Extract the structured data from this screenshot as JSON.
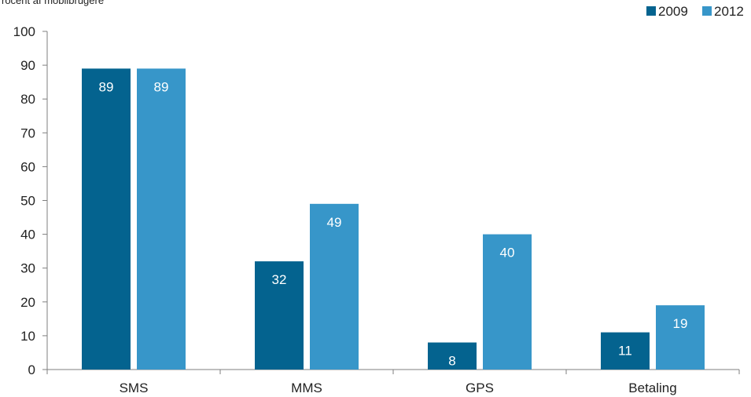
{
  "chart_data": {
    "type": "bar",
    "ylabel": "rocent af mobilbrugere",
    "categories": [
      "SMS",
      "MMS",
      "GPS",
      "Betaling"
    ],
    "series": [
      {
        "name": "2009",
        "values": [
          89,
          32,
          8,
          11
        ],
        "color": "#04638f"
      },
      {
        "name": "2012",
        "values": [
          89,
          49,
          40,
          19
        ],
        "color": "#3796c9"
      }
    ],
    "ylim": [
      0,
      100
    ],
    "yticks": [
      "0",
      "10",
      "20",
      "30",
      "40",
      "50",
      "60",
      "70",
      "80",
      "90",
      "100"
    ],
    "grid": false,
    "legend_position": "top-right",
    "data_labels": true
  }
}
